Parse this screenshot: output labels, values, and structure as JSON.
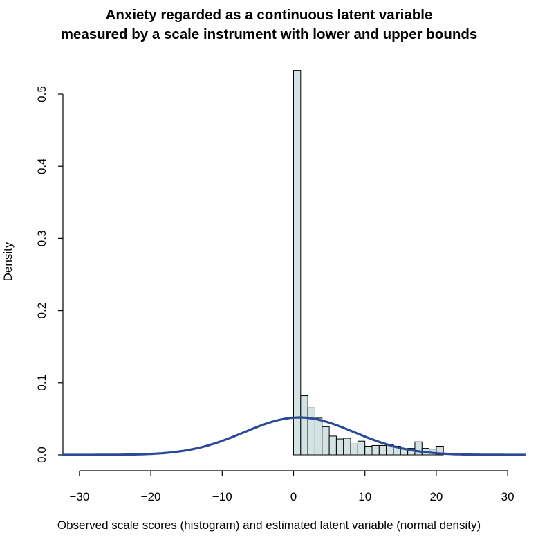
{
  "chart_data": {
    "type": "bar",
    "title_line1": "Anxiety regarded as a continuous latent variable",
    "title_line2": "measured by a scale instrument with lower and upper bounds",
    "xlabel": "Observed scale scores (histogram) and estimated latent variable (normal density)",
    "ylabel": "Density",
    "xlim": [
      -32.5,
      32.5
    ],
    "ylim": [
      0,
      0.55
    ],
    "x_ticks": [
      -30,
      -20,
      -10,
      0,
      10,
      20,
      30
    ],
    "x_tick_labels": [
      "−30",
      "−20",
      "−10",
      "0",
      "10",
      "20",
      "30"
    ],
    "y_ticks": [
      0.0,
      0.1,
      0.2,
      0.3,
      0.4,
      0.5
    ],
    "y_tick_labels": [
      "0.0",
      "0.1",
      "0.2",
      "0.3",
      "0.4",
      "0.5"
    ],
    "histogram": {
      "bin_width": 1,
      "bin_starts": [
        0,
        1,
        2,
        3,
        4,
        5,
        6,
        7,
        8,
        9,
        10,
        11,
        12,
        13,
        14,
        15,
        16,
        17,
        18,
        19,
        20
      ],
      "values": [
        0.533,
        0.082,
        0.065,
        0.051,
        0.039,
        0.026,
        0.022,
        0.023,
        0.015,
        0.019,
        0.012,
        0.013,
        0.013,
        0.014,
        0.012,
        0.008,
        0.009,
        0.018,
        0.009,
        0.008,
        0.012
      ],
      "fill": "#d3e3e3",
      "stroke": "#000000"
    },
    "density_curve": {
      "name": "normal density",
      "mean": 0.8,
      "sd": 7.7,
      "color": "#2b4a98"
    },
    "grid": false,
    "legend": "none"
  }
}
